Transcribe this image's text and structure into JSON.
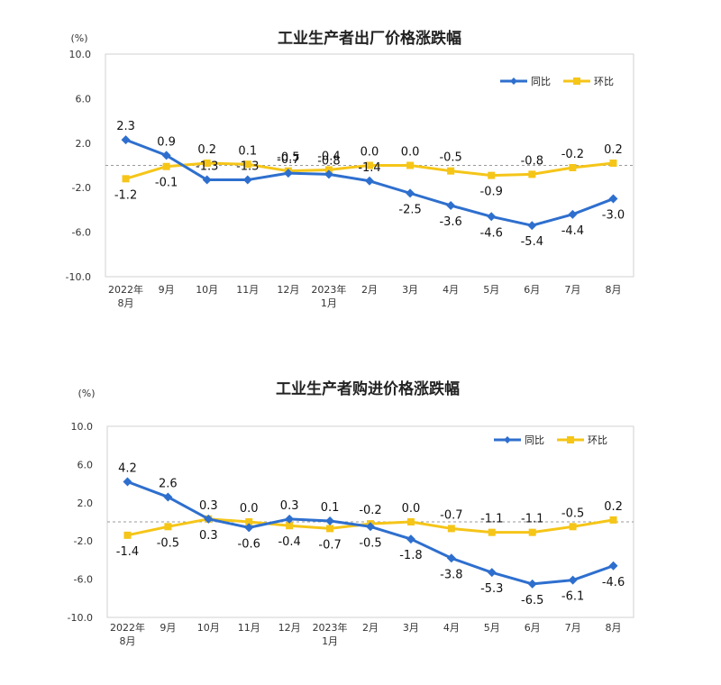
{
  "chart_data": [
    {
      "type": "line",
      "title": "工业生产者出厂价格涨跌幅",
      "unit": "(%)",
      "ylim": [
        -10.0,
        10.0
      ],
      "yticks": [
        "10.0",
        "6.0",
        "2.0",
        "-2.0",
        "-6.0",
        "-10.0"
      ],
      "categories": [
        [
          "2022年",
          "8月"
        ],
        [
          "9月"
        ],
        [
          "10月"
        ],
        [
          "11月"
        ],
        [
          "12月"
        ],
        [
          "2023年",
          "1月"
        ],
        [
          "2月"
        ],
        [
          "3月"
        ],
        [
          "4月"
        ],
        [
          "5月"
        ],
        [
          "6月"
        ],
        [
          "7月"
        ],
        [
          "8月"
        ]
      ],
      "legend_position": "top-right",
      "series": [
        {
          "name": "同比",
          "color": "#2e6fce",
          "marker": "diamond",
          "values": [
            2.3,
            0.9,
            -1.3,
            -1.3,
            -0.7,
            -0.8,
            -1.4,
            -2.5,
            -3.6,
            -4.6,
            -5.4,
            -4.4,
            -3.0
          ],
          "labels": [
            "2.3",
            "0.9",
            "-1.3",
            "-1.3",
            "-0.7",
            "-0.8",
            "-1.4",
            "-2.5",
            "-3.6",
            "-4.6",
            "-5.4",
            "-4.4",
            "-3.0"
          ]
        },
        {
          "name": "环比",
          "color": "#f5c518",
          "marker": "square",
          "values": [
            -1.2,
            -0.1,
            0.2,
            0.1,
            -0.5,
            -0.4,
            0.0,
            0.0,
            -0.5,
            -0.9,
            -0.8,
            -0.2,
            0.2
          ],
          "labels": [
            "-1.2",
            "-0.1",
            "0.2",
            "0.1",
            "-0.5",
            "-0.4",
            "0.0",
            "0.0",
            "-0.5",
            "-0.9",
            "-0.8",
            "-0.2",
            "0.2"
          ]
        }
      ]
    },
    {
      "type": "line",
      "title": "工业生产者购进价格涨跌幅",
      "unit": "(%)",
      "ylim": [
        -10.0,
        10.0
      ],
      "yticks": [
        "10.0",
        "6.0",
        "2.0",
        "-2.0",
        "-6.0",
        "-10.0"
      ],
      "categories": [
        [
          "2022年",
          "8月"
        ],
        [
          "9月"
        ],
        [
          "10月"
        ],
        [
          "11月"
        ],
        [
          "12月"
        ],
        [
          "2023年",
          "1月"
        ],
        [
          "2月"
        ],
        [
          "3月"
        ],
        [
          "4月"
        ],
        [
          "5月"
        ],
        [
          "6月"
        ],
        [
          "7月"
        ],
        [
          "8月"
        ]
      ],
      "legend_position": "top-right",
      "series": [
        {
          "name": "同比",
          "color": "#2e6fce",
          "marker": "diamond",
          "values": [
            4.2,
            2.6,
            0.3,
            -0.6,
            0.3,
            0.1,
            -0.5,
            -1.8,
            -3.8,
            -5.3,
            -6.5,
            -6.1,
            -4.6
          ],
          "labels": [
            "4.2",
            "2.6",
            "0.3",
            "-0.6",
            "0.3",
            "0.1",
            "-0.5",
            "-1.8",
            "-3.8",
            "-5.3",
            "-6.5",
            "-6.1",
            "-4.6"
          ]
        },
        {
          "name": "环比",
          "color": "#f5c518",
          "marker": "square",
          "values": [
            -1.4,
            -0.5,
            0.3,
            0.0,
            -0.4,
            -0.7,
            -0.2,
            0.0,
            -0.7,
            -1.1,
            -1.1,
            -0.5,
            0.2
          ],
          "labels": [
            "-1.4",
            "-0.5",
            "0.3",
            "0.0",
            "-0.4",
            "-0.7",
            "-0.2",
            "0.0",
            "-0.7",
            "-1.1",
            "-1.1",
            "-0.5",
            "0.2"
          ]
        }
      ]
    }
  ]
}
